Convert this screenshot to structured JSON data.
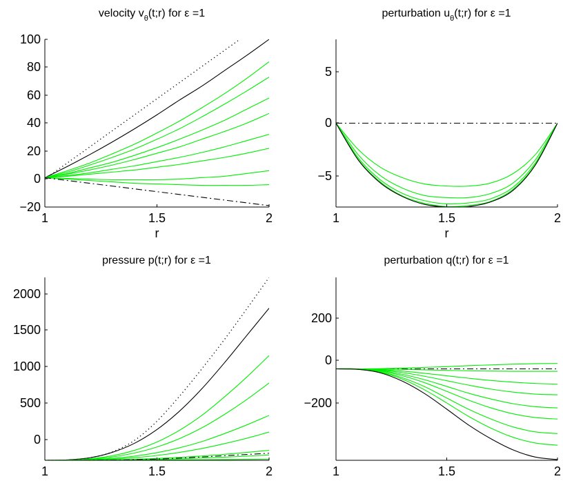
{
  "chart_data": [
    {
      "type": "line",
      "title_main": "velocity v",
      "title_sub": "θ",
      "title_tail": "(t;r) for ε =1",
      "xlabel": "r",
      "xlim": [
        1,
        2
      ],
      "ylim": [
        -20,
        100
      ],
      "xticks": [
        "1",
        "1.5",
        "2"
      ],
      "yticks": [
        "100",
        "80",
        "60",
        "40",
        "20",
        "0",
        "−20"
      ],
      "x": [
        1.0,
        1.1,
        1.2,
        1.3,
        1.4,
        1.5,
        1.6,
        1.7,
        1.8,
        1.9,
        2.0
      ],
      "series": [
        {
          "style": "dotted",
          "color": "#000000",
          "values": [
            0,
            11.5,
            23,
            34.5,
            46,
            57.5,
            69,
            80.5,
            92,
            103.5,
            115
          ]
        },
        {
          "style": "solid",
          "color": "#000000",
          "values": [
            1,
            9,
            17.5,
            26.5,
            36,
            46,
            56.5,
            66.5,
            77.5,
            88.5,
            100
          ]
        },
        {
          "style": "solid",
          "color": "#00ee00",
          "values": [
            1,
            6,
            11.5,
            18,
            25,
            33,
            41.5,
            51,
            61,
            72,
            84
          ]
        },
        {
          "style": "solid",
          "color": "#00ee00",
          "values": [
            1,
            5,
            10,
            15.5,
            21.5,
            28.5,
            36,
            44.5,
            53.5,
            63,
            73
          ]
        },
        {
          "style": "solid",
          "color": "#00ee00",
          "values": [
            1,
            4,
            8,
            12,
            17,
            22.5,
            28.5,
            35,
            42,
            50,
            58
          ]
        },
        {
          "style": "solid",
          "color": "#00ee00",
          "values": [
            1,
            3.5,
            6.5,
            10,
            14,
            18.5,
            23,
            28.5,
            34,
            40,
            47
          ]
        },
        {
          "style": "solid",
          "color": "#00ee00",
          "values": [
            1,
            2.5,
            4.5,
            7,
            9.5,
            12.5,
            15.5,
            19,
            23,
            27.5,
            32
          ]
        },
        {
          "style": "solid",
          "color": "#00ee00",
          "values": [
            1,
            2,
            3.5,
            5,
            6.5,
            8.5,
            10.5,
            13,
            15.5,
            18.5,
            22
          ]
        },
        {
          "style": "solid",
          "color": "#00ee00",
          "values": [
            1,
            0.5,
            0,
            -0.5,
            -0.5,
            -0.5,
            0,
            1,
            2,
            4,
            6
          ]
        },
        {
          "style": "solid",
          "color": "#00ee00",
          "values": [
            1,
            0,
            -1,
            -2,
            -3,
            -3.5,
            -4,
            -4.5,
            -4.5,
            -4.5,
            -4
          ]
        },
        {
          "style": "dashdot",
          "color": "#000000",
          "values": [
            1,
            -1,
            -3,
            -5,
            -7,
            -9,
            -11,
            -13,
            -15,
            -17,
            -19
          ]
        }
      ]
    },
    {
      "type": "line",
      "title_main": "perturbation u",
      "title_sub": "θ",
      "title_tail": "(t;r) for ε =1",
      "xlabel": "r",
      "xlim": [
        1,
        2
      ],
      "ylim": [
        -8,
        8
      ],
      "xticks": [
        "1",
        "1.5",
        "2"
      ],
      "yticks": [
        "5",
        "0",
        "−5"
      ],
      "x": [
        1.0,
        1.1,
        1.2,
        1.3,
        1.4,
        1.5,
        1.6,
        1.7,
        1.8,
        1.9,
        2.0
      ],
      "series": [
        {
          "style": "dashdot",
          "color": "#000000",
          "values": [
            0,
            0,
            0,
            0,
            0,
            0,
            0,
            0,
            0,
            0,
            0
          ]
        },
        {
          "style": "solid",
          "color": "#00ee00",
          "values": [
            0,
            -2.5,
            -4.2,
            -5.2,
            -5.8,
            -6.0,
            -6.0,
            -5.7,
            -4.8,
            -3.0,
            0
          ]
        },
        {
          "style": "solid",
          "color": "#00ee00",
          "values": [
            0,
            -3.0,
            -5.0,
            -6.2,
            -6.9,
            -7.1,
            -7.1,
            -6.7,
            -5.7,
            -3.5,
            0
          ]
        },
        {
          "style": "solid",
          "color": "#00ee00",
          "values": [
            0,
            -3.3,
            -5.4,
            -6.7,
            -7.4,
            -7.7,
            -7.6,
            -7.2,
            -6.1,
            -3.8,
            0
          ]
        },
        {
          "style": "solid",
          "color": "#00ee00",
          "values": [
            0,
            -3.45,
            -5.6,
            -6.95,
            -7.65,
            -7.95,
            -7.85,
            -7.45,
            -6.3,
            -3.95,
            0
          ]
        },
        {
          "style": "solid",
          "color": "#000000",
          "values": [
            0,
            -3.5,
            -5.7,
            -7.0,
            -7.75,
            -8.0,
            -7.95,
            -7.5,
            -6.4,
            -4.0,
            0
          ]
        }
      ]
    },
    {
      "type": "line",
      "title_main": "pressure p(t;r) for ε =1",
      "title_sub": "",
      "title_tail": "",
      "xlabel": "r",
      "xlim": [
        1,
        2
      ],
      "ylim": [
        0,
        2200
      ],
      "xticks": [
        "1",
        "1.5",
        "2"
      ],
      "yticks": [
        "2000",
        "1500",
        "1000",
        "500",
        "0"
      ],
      "x": [
        1.0,
        1.1,
        1.2,
        1.3,
        1.4,
        1.5,
        1.6,
        1.7,
        1.8,
        1.9,
        2.0
      ],
      "series": [
        {
          "style": "dotted",
          "color": "#000000",
          "values": [
            0,
            4,
            30,
            100,
            240,
            470,
            770,
            1100,
            1450,
            1820,
            2200
          ]
        },
        {
          "style": "solid",
          "color": "#000000",
          "values": [
            0,
            5,
            30,
            95,
            205,
            370,
            590,
            860,
            1170,
            1500,
            1830
          ]
        },
        {
          "style": "solid",
          "color": "#00ee00",
          "values": [
            0,
            3,
            18,
            55,
            120,
            220,
            360,
            540,
            760,
            1000,
            1260
          ]
        },
        {
          "style": "solid",
          "color": "#00ee00",
          "values": [
            0,
            2,
            13,
            40,
            88,
            160,
            260,
            390,
            550,
            730,
            930
          ]
        },
        {
          "style": "solid",
          "color": "#00ee00",
          "values": [
            0,
            1,
            8,
            23,
            50,
            92,
            150,
            225,
            320,
            425,
            540
          ]
        },
        {
          "style": "solid",
          "color": "#00ee00",
          "values": [
            0,
            1,
            5,
            15,
            32,
            58,
            95,
            142,
            200,
            265,
            340
          ]
        },
        {
          "style": "solid",
          "color": "#00ee00",
          "values": [
            0,
            0,
            2,
            6,
            12,
            22,
            35,
            52,
            72,
            95,
            120
          ]
        },
        {
          "style": "solid",
          "color": "#00ee00",
          "values": [
            0,
            0,
            1,
            3,
            6,
            11,
            18,
            27,
            38,
            50,
            64
          ]
        },
        {
          "style": "dashdot",
          "color": "#000000",
          "values": [
            0,
            0,
            1,
            3,
            8,
            15,
            26,
            40,
            55,
            70,
            85
          ]
        },
        {
          "style": "solid",
          "color": "#00ee00",
          "values": [
            0,
            0,
            0,
            1,
            2,
            3,
            5,
            7,
            9,
            11,
            13
          ]
        }
      ]
    },
    {
      "type": "line",
      "title_main": "perturbation q(t;r) for ε =1",
      "title_sub": "",
      "title_tail": "",
      "xlabel": "r",
      "xlim": [
        1,
        2
      ],
      "ylim": [
        -370,
        370
      ],
      "xticks": [
        "1",
        "1.5",
        "2"
      ],
      "yticks": [
        "200",
        "0",
        "−200"
      ],
      "x": [
        1.0,
        1.1,
        1.2,
        1.3,
        1.4,
        1.5,
        1.6,
        1.7,
        1.8,
        1.9,
        2.0
      ],
      "series": [
        {
          "style": "dashdot",
          "color": "#000000",
          "values": [
            0,
            0,
            0,
            0,
            0,
            0,
            0,
            0,
            0,
            0,
            0
          ]
        },
        {
          "style": "solid",
          "color": "#00ee00",
          "values": [
            0,
            0,
            1,
            3,
            6,
            9,
            13,
            16,
            19,
            21,
            22
          ]
        },
        {
          "style": "solid",
          "color": "#00ee00",
          "values": [
            0,
            0,
            -1,
            -2,
            -4,
            -6,
            -8,
            -9,
            -10,
            -10,
            -10
          ]
        },
        {
          "style": "solid",
          "color": "#00ee00",
          "values": [
            0,
            0,
            -3,
            -9,
            -18,
            -28,
            -38,
            -47,
            -54,
            -59,
            -62
          ]
        },
        {
          "style": "solid",
          "color": "#00ee00",
          "values": [
            0,
            0,
            -5,
            -15,
            -30,
            -48,
            -66,
            -82,
            -94,
            -102,
            -105
          ]
        },
        {
          "style": "solid",
          "color": "#00ee00",
          "values": [
            0,
            -1,
            -7,
            -22,
            -44,
            -71,
            -99,
            -122,
            -141,
            -153,
            -158
          ]
        },
        {
          "style": "solid",
          "color": "#00ee00",
          "values": [
            0,
            -1,
            -9,
            -28,
            -56,
            -91,
            -127,
            -158,
            -182,
            -197,
            -203
          ]
        },
        {
          "style": "solid",
          "color": "#00ee00",
          "values": [
            0,
            -1,
            -12,
            -36,
            -72,
            -118,
            -164,
            -203,
            -235,
            -255,
            -262
          ]
        },
        {
          "style": "solid",
          "color": "#00ee00",
          "values": [
            0,
            -2,
            -14,
            -42,
            -85,
            -138,
            -193,
            -240,
            -277,
            -300,
            -309
          ]
        },
        {
          "style": "solid",
          "color": "#000000",
          "values": [
            0,
            -2,
            -16,
            -50,
            -100,
            -163,
            -228,
            -283,
            -328,
            -357,
            -367
          ]
        }
      ]
    }
  ]
}
